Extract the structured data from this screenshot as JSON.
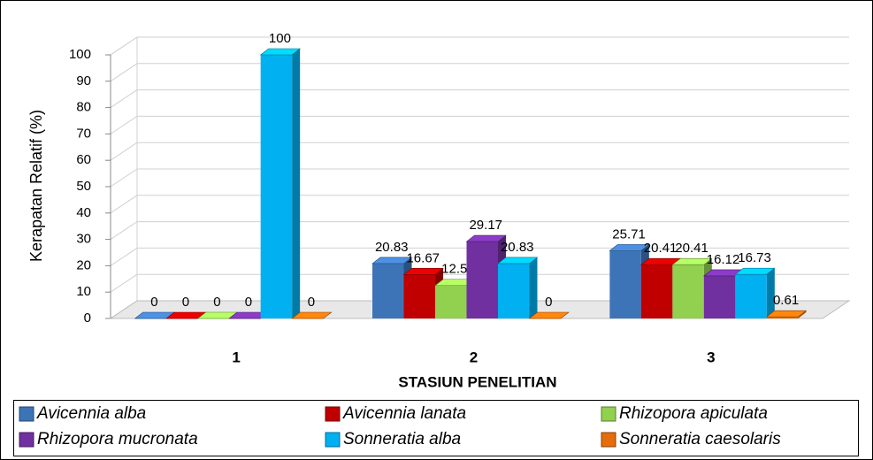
{
  "chart_data": {
    "type": "bar3d",
    "y_label": "Kerapatan Relatif (%)",
    "x_label": "STASIUN PENELITIAN",
    "categories": [
      "1",
      "2",
      "3"
    ],
    "series": [
      {
        "name": "Avicennia alba",
        "color": "#3d74b8",
        "values": [
          0,
          20.83,
          25.71
        ]
      },
      {
        "name": "Avicennia lanata",
        "color": "#c00000",
        "values": [
          0,
          16.67,
          20.41
        ]
      },
      {
        "name": "Rhizopora apiculata",
        "color": "#92d050",
        "values": [
          0,
          12.5,
          20.41
        ]
      },
      {
        "name": "Rhizopora mucronata",
        "color": "#7030a0",
        "values": [
          0,
          29.17,
          16.12
        ]
      },
      {
        "name": "Sonneratia alba",
        "color": "#00b0f0",
        "values": [
          100,
          20.83,
          16.73
        ]
      },
      {
        "name": "Sonneratia caesolaris",
        "color": "#e46c0a",
        "values": [
          0,
          0,
          0.61
        ]
      }
    ],
    "ylim": [
      0,
      100
    ],
    "yticks": [
      0,
      10,
      20,
      30,
      40,
      50,
      60,
      70,
      80,
      90,
      100
    ],
    "grid": true
  }
}
